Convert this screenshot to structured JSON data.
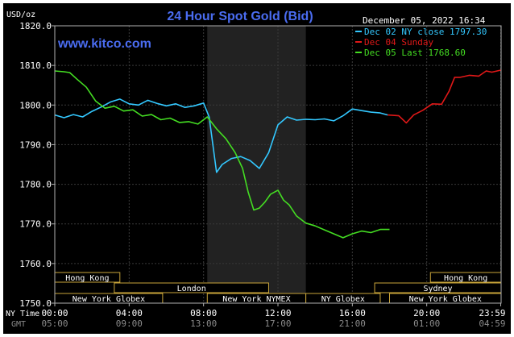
{
  "chart_data": {
    "type": "line",
    "title": "24 Hour Spot Gold (Bid)",
    "watermark": "www.kitco.com",
    "ylabel": "USD/oz",
    "date_time": "December 05, 2022 16:34",
    "ylim": [
      1750,
      1820
    ],
    "yticks": [
      "1820.0",
      "1810.0",
      "1800.0",
      "1790.0",
      "1780.0",
      "1770.0",
      "1760.0",
      "1750.0"
    ],
    "x_axis": {
      "ny_time_label": "NY Time",
      "gmt_label": "GMT",
      "hours": [
        0,
        4,
        8,
        12,
        16,
        20,
        23.98
      ],
      "ny_labels": [
        "00:00",
        "04:00",
        "08:00",
        "12:00",
        "16:00",
        "20:00",
        "23:59"
      ],
      "gmt_labels": [
        "05:00",
        "09:00",
        "13:00",
        "17:00",
        "21:00",
        "01:00",
        "04:59"
      ]
    },
    "highlight_hours": [
      8.2,
      13.5
    ],
    "legend_placement": "top-right",
    "series": [
      {
        "name": "Dec 02 NY close 1797.30",
        "color": "#33c8ff",
        "points": [
          [
            0,
            1797.5
          ],
          [
            0.5,
            1796.8
          ],
          [
            1,
            1797.6
          ],
          [
            1.5,
            1797
          ],
          [
            2,
            1798.4
          ],
          [
            2.5,
            1799.5
          ],
          [
            3,
            1800.8
          ],
          [
            3.5,
            1801.5
          ],
          [
            4,
            1800.3
          ],
          [
            4.5,
            1800
          ],
          [
            5,
            1801.2
          ],
          [
            5.5,
            1800.4
          ],
          [
            6,
            1799.8
          ],
          [
            6.5,
            1800.3
          ],
          [
            7,
            1799.4
          ],
          [
            7.5,
            1799.8
          ],
          [
            8,
            1800.5
          ],
          [
            8.3,
            1797
          ],
          [
            8.5,
            1790
          ],
          [
            8.7,
            1783
          ],
          [
            9,
            1785
          ],
          [
            9.5,
            1786.5
          ],
          [
            10,
            1787
          ],
          [
            10.5,
            1786
          ],
          [
            11,
            1784
          ],
          [
            11.5,
            1788
          ],
          [
            12,
            1795
          ],
          [
            12.5,
            1797
          ],
          [
            13,
            1796.2
          ],
          [
            13.5,
            1796.4
          ],
          [
            14,
            1796.3
          ],
          [
            14.5,
            1796.5
          ],
          [
            15,
            1796
          ],
          [
            15.5,
            1797.3
          ],
          [
            16,
            1799
          ],
          [
            16.5,
            1798.6
          ],
          [
            17,
            1798.2
          ],
          [
            17.5,
            1798
          ],
          [
            17.9,
            1797.5
          ]
        ]
      },
      {
        "name": "Dec 04 Sunday",
        "color": "#e01818",
        "points": [
          [
            17.9,
            1797.5
          ],
          [
            18.5,
            1797.3
          ],
          [
            18.9,
            1795.5
          ],
          [
            19.3,
            1797.5
          ],
          [
            19.8,
            1798.7
          ],
          [
            20.3,
            1800.3
          ],
          [
            20.8,
            1800.2
          ],
          [
            21.2,
            1803.5
          ],
          [
            21.5,
            1807
          ],
          [
            21.8,
            1807
          ],
          [
            22.3,
            1807.5
          ],
          [
            22.8,
            1807.3
          ],
          [
            23.2,
            1808.6
          ],
          [
            23.5,
            1808.3
          ],
          [
            23.98,
            1808.8
          ]
        ]
      },
      {
        "name": "Dec 05 Last 1768.60",
        "color": "#44dd22",
        "points": [
          [
            0,
            1808.6
          ],
          [
            0.5,
            1808.4
          ],
          [
            0.8,
            1808.2
          ],
          [
            1.2,
            1806.5
          ],
          [
            1.7,
            1804.5
          ],
          [
            2.2,
            1801
          ],
          [
            2.7,
            1799.2
          ],
          [
            3.2,
            1799.7
          ],
          [
            3.7,
            1798.5
          ],
          [
            4.2,
            1798.8
          ],
          [
            4.7,
            1797.2
          ],
          [
            5.2,
            1797.6
          ],
          [
            5.7,
            1796.3
          ],
          [
            6.2,
            1796.7
          ],
          [
            6.7,
            1795.6
          ],
          [
            7.2,
            1795.8
          ],
          [
            7.7,
            1795.2
          ],
          [
            8.2,
            1797
          ],
          [
            8.7,
            1794
          ],
          [
            9.2,
            1791.5
          ],
          [
            9.7,
            1788
          ],
          [
            10.1,
            1784
          ],
          [
            10.4,
            1778
          ],
          [
            10.7,
            1773.5
          ],
          [
            11,
            1774
          ],
          [
            11.3,
            1775.5
          ],
          [
            11.6,
            1777.5
          ],
          [
            12,
            1778.5
          ],
          [
            12.3,
            1776
          ],
          [
            12.6,
            1774.8
          ],
          [
            13,
            1772
          ],
          [
            13.5,
            1770.2
          ],
          [
            14,
            1769.5
          ],
          [
            14.5,
            1768.5
          ],
          [
            15,
            1767.5
          ],
          [
            15.5,
            1766.5
          ],
          [
            16,
            1767.5
          ],
          [
            16.5,
            1768.2
          ],
          [
            17,
            1767.8
          ],
          [
            17.5,
            1768.6
          ],
          [
            18,
            1768.6
          ]
        ]
      }
    ],
    "sessions": [
      {
        "name": "Hong Kong",
        "start": 0,
        "end": 3.5,
        "row": 0
      },
      {
        "name": "Hong Kong",
        "start": 20.2,
        "end": 24,
        "row": 0
      },
      {
        "name": "London",
        "start": 3.2,
        "end": 11.5,
        "row": 1
      },
      {
        "name": "Sydney",
        "start": 17.2,
        "end": 24,
        "row": 1
      },
      {
        "name": "New York Globex",
        "start": 0,
        "end": 5.8,
        "row": 2
      },
      {
        "name": "New York NYMEX",
        "start": 8.2,
        "end": 13.5,
        "row": 2
      },
      {
        "name": "NY Globex",
        "start": 13.5,
        "end": 17.5,
        "row": 2
      },
      {
        "name": "New York Globex",
        "start": 18,
        "end": 24,
        "row": 2
      }
    ]
  }
}
